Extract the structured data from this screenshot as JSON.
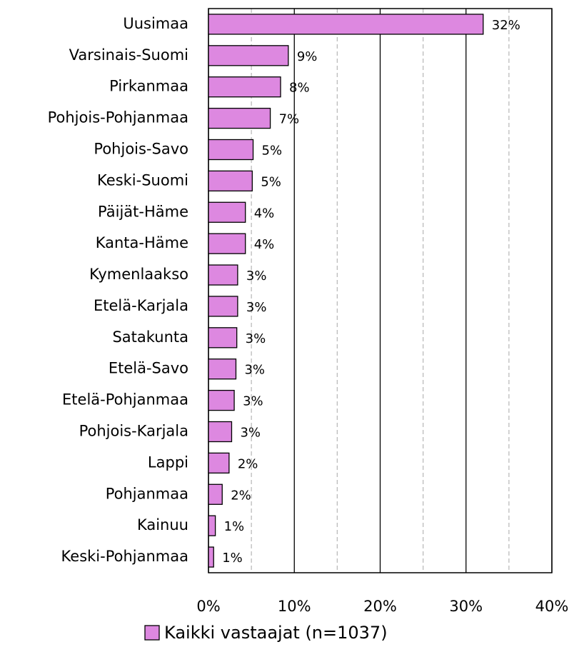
{
  "chart_data": {
    "type": "hbar",
    "categories": [
      "Uusimaa",
      "Varsinais-Suomi",
      "Pirkanmaa",
      "Pohjois-Pohjanmaa",
      "Pohjois-Savo",
      "Keski-Suomi",
      "Päijät-Häme",
      "Kanta-Häme",
      "Kymenlaakso",
      "Etelä-Karjala",
      "Satakunta",
      "Etelä-Savo",
      "Etelä-Pohjanmaa",
      "Pohjois-Karjala",
      "Lappi",
      "Pohjanmaa",
      "Kainuu",
      "Keski-Pohjanmaa"
    ],
    "series": [
      {
        "name": "Kaikki vastaajat (n=1037)",
        "color": "#dd88e0",
        "values": [
          32.0,
          9.3,
          8.4,
          7.2,
          5.2,
          5.1,
          4.3,
          4.3,
          3.4,
          3.4,
          3.3,
          3.2,
          3.0,
          2.7,
          2.4,
          1.6,
          0.8,
          0.6
        ],
        "value_labels": [
          "32%",
          "9%",
          "8%",
          "7%",
          "5%",
          "5%",
          "4%",
          "4%",
          "3%",
          "3%",
          "3%",
          "3%",
          "3%",
          "3%",
          "2%",
          "2%",
          "1%",
          "1%"
        ]
      }
    ],
    "xlim": [
      0,
      40
    ],
    "xticks": [
      {
        "value": 0,
        "label": "0%"
      },
      {
        "value": 10,
        "label": "10%"
      },
      {
        "value": 20,
        "label": "20%"
      },
      {
        "value": 30,
        "label": "30%"
      },
      {
        "value": 40,
        "label": "40%"
      }
    ],
    "minor_xticks": [
      5,
      15,
      25,
      35
    ],
    "grid": true,
    "legend": "bottom"
  }
}
